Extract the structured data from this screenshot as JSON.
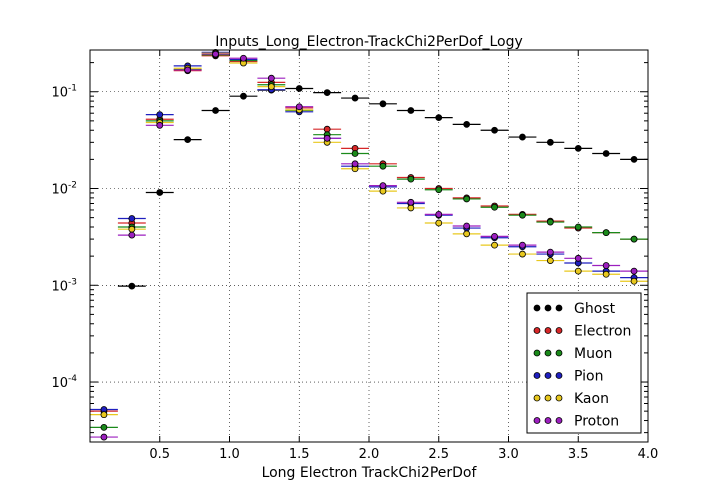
{
  "chart_data": {
    "type": "scatter",
    "title": "Inputs_Long_Electron-TrackChi2PerDof_Logy",
    "xlabel": "Long Electron TrackChi2PerDof",
    "ylabel": "",
    "xlim": [
      0.0,
      4.0
    ],
    "ylim": [
      2.4e-05,
      0.27
    ],
    "yscale": "log",
    "grid": true,
    "legend_position": "lower right",
    "xticks": [
      "0.5",
      "1.0",
      "1.5",
      "2.0",
      "2.5",
      "3.0",
      "3.5",
      "4.0"
    ],
    "yticks": [
      {
        "value": 0.0001,
        "base": "10",
        "exp": "-4"
      },
      {
        "value": 0.001,
        "base": "10",
        "exp": "-3"
      },
      {
        "value": 0.01,
        "base": "10",
        "exp": "-2"
      },
      {
        "value": 0.1,
        "base": "10",
        "exp": "-1"
      }
    ],
    "bin_width": 0.2,
    "x": [
      0.1,
      0.3,
      0.5,
      0.7,
      0.9,
      1.1,
      1.3,
      1.5,
      1.7,
      1.9,
      2.1,
      2.3,
      2.5,
      2.7,
      2.9,
      3.1,
      3.3,
      3.5,
      3.7,
      3.9
    ],
    "series": [
      {
        "name": "Ghost",
        "color": "#000000",
        "values": [
          null,
          0.00098,
          0.0091,
          0.032,
          0.064,
          0.09,
          0.104,
          0.108,
          0.098,
          0.086,
          0.075,
          0.064,
          0.054,
          0.046,
          0.04,
          0.034,
          0.03,
          0.026,
          0.023,
          0.02
        ]
      },
      {
        "name": "Electron",
        "color": "#d62728",
        "values": [
          5e-05,
          0.0044,
          0.052,
          0.165,
          0.235,
          0.205,
          0.125,
          0.068,
          0.041,
          0.026,
          0.018,
          0.013,
          0.01,
          0.008,
          0.0066,
          0.0054,
          0.0046,
          0.0039,
          0.0035,
          0.003
        ]
      },
      {
        "name": "Muon",
        "color": "#1a8a1a",
        "values": [
          3.4e-05,
          0.004,
          0.05,
          0.17,
          0.24,
          0.21,
          0.118,
          0.064,
          0.036,
          0.023,
          0.017,
          0.0125,
          0.0097,
          0.0078,
          0.0064,
          0.0053,
          0.0045,
          0.004,
          0.0035,
          0.003
        ]
      },
      {
        "name": "Pion",
        "color": "#1f1fbf",
        "values": [
          5.2e-05,
          0.0049,
          0.058,
          0.185,
          0.255,
          0.215,
          0.105,
          0.062,
          0.033,
          0.017,
          0.0104,
          0.007,
          0.0053,
          0.0039,
          0.0031,
          0.0025,
          0.0021,
          0.0017,
          0.0014,
          0.0012
        ]
      },
      {
        "name": "Kaon",
        "color": "#e8c81e",
        "values": [
          4.6e-05,
          0.0038,
          0.048,
          0.175,
          0.25,
          0.198,
          0.113,
          0.065,
          0.03,
          0.016,
          0.0094,
          0.0063,
          0.0044,
          0.0034,
          0.0026,
          0.0021,
          0.0018,
          0.0014,
          0.0013,
          0.0011
        ]
      },
      {
        "name": "Proton",
        "color": "#9c1fbf",
        "values": [
          2.7e-05,
          0.0033,
          0.045,
          0.168,
          0.245,
          0.222,
          0.138,
          0.07,
          0.033,
          0.018,
          0.0107,
          0.0072,
          0.0054,
          0.0041,
          0.0032,
          0.0026,
          0.0022,
          0.0019,
          0.0016,
          0.0014
        ]
      }
    ]
  }
}
